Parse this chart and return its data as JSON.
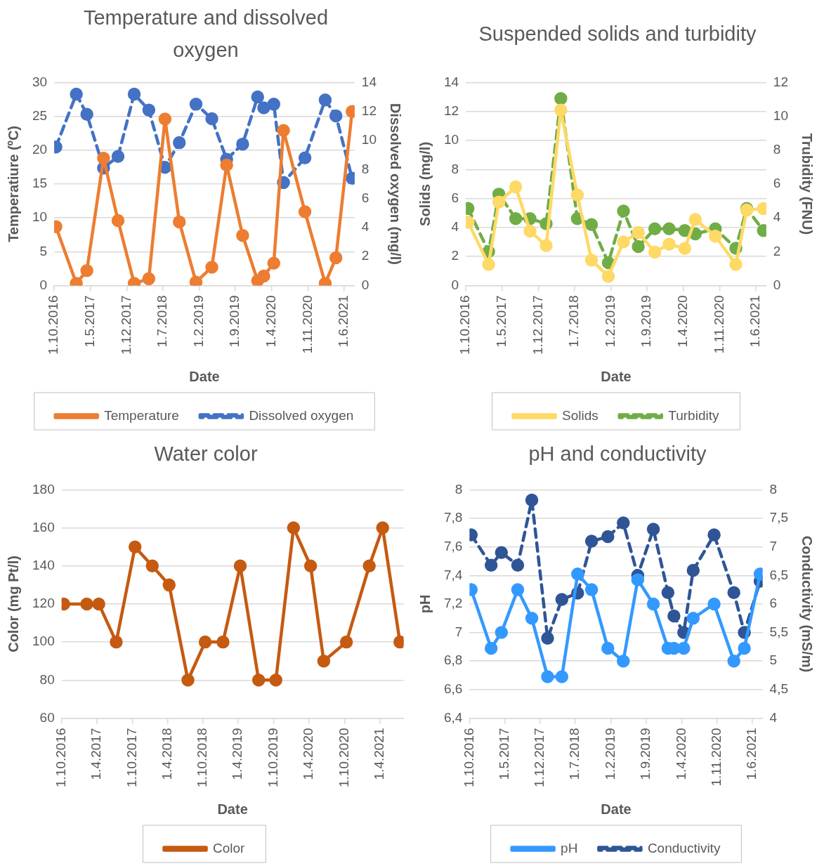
{
  "chart_data": [
    {
      "type": "line",
      "title": "Temperature and dissolved oxygen",
      "xlabel": "Date",
      "ylabel": "Temperatiure (ºC)",
      "y2label": "Dissolved oxygen (mg/l)",
      "x": [
        "2016-10-11",
        "2017-02-08",
        "2017-04-11",
        "2017-07-18",
        "2017-10-11",
        "2018-01-14",
        "2018-04-10",
        "2018-07-14",
        "2018-10-06",
        "2019-01-12",
        "2019-04-15",
        "2019-07-11",
        "2019-10-13",
        "2020-01-09",
        "2020-02-14",
        "2020-04-13",
        "2020-06-09",
        "2020-10-13",
        "2021-02-09",
        "2021-04-13",
        "2021-07-17"
      ],
      "series": [
        {
          "name": "Temperature",
          "color": "#ed7d31",
          "values": [
            8.7,
            0.3,
            2.2,
            18.8,
            9.6,
            0.3,
            1.0,
            24.6,
            9.4,
            0.5,
            2.7,
            17.8,
            7.4,
            0.7,
            1.4,
            3.3,
            22.9,
            10.9,
            0.3,
            4.1,
            25.7
          ]
        },
        {
          "name": "Dissolved oxygen",
          "color": "#4472c4",
          "axis": "y2",
          "line_style": "dashed",
          "values": [
            9.55,
            13.2,
            11.8,
            8.1,
            8.9,
            13.2,
            12.1,
            8.15,
            9.85,
            12.5,
            11.5,
            8.7,
            9.75,
            13.0,
            12.25,
            12.5,
            7.1,
            8.8,
            12.8,
            11.7,
            7.4
          ]
        }
      ],
      "xlim": [
        "2016-10-01",
        "2021-08-01"
      ],
      "xticks": [
        {
          "value": "2016-10-01",
          "label": "1.10.2016"
        },
        {
          "value": "2017-05-01",
          "label": "1.5.2017"
        },
        {
          "value": "2017-12-01",
          "label": "1.12.2017"
        },
        {
          "value": "2018-07-01",
          "label": "1.7.2018"
        },
        {
          "value": "2019-02-01",
          "label": "1.2.2019"
        },
        {
          "value": "2019-09-01",
          "label": "1.9.2019"
        },
        {
          "value": "2020-04-01",
          "label": "1.4.2020"
        },
        {
          "value": "2020-11-01",
          "label": "1.11.2020"
        },
        {
          "value": "2021-06-01",
          "label": "1.6.2021"
        }
      ],
      "ylim": [
        0,
        30
      ],
      "yticks": [
        0,
        5,
        10,
        15,
        20,
        25,
        30
      ],
      "y2lim": [
        0,
        14
      ],
      "y2ticks": [
        0,
        2,
        4,
        6,
        8,
        10,
        12,
        14
      ],
      "grid": "y",
      "legend": "bottom",
      "marker": "circle"
    },
    {
      "type": "line",
      "title": "Suspended solids and turbidity",
      "xlabel": "Date",
      "ylabel": "Solids (mg/l)",
      "y2label": "Trubidity (FNU)",
      "x": [
        "2016-10-14",
        "2017-02-12",
        "2017-04-13",
        "2017-07-21",
        "2017-10-13",
        "2018-01-16",
        "2018-04-12",
        "2018-07-18",
        "2018-10-09",
        "2019-01-16",
        "2019-04-15",
        "2019-07-11",
        "2019-10-16",
        "2020-01-08",
        "2020-04-09",
        "2020-06-10",
        "2020-10-06",
        "2021-02-03",
        "2021-04-08",
        "2021-07-15"
      ],
      "series": [
        {
          "name": "Solids",
          "color": "#ffd966",
          "values": [
            4.37,
            1.45,
            5.75,
            6.8,
            3.75,
            2.75,
            12.1,
            6.25,
            1.75,
            0.63,
            3.0,
            3.65,
            2.3,
            2.85,
            2.55,
            4.55,
            3.4,
            1.45,
            5.2,
            5.3
          ]
        },
        {
          "name": "Turbidity",
          "color": "#70ad47",
          "axis": "y2",
          "line_style": "dashed",
          "values": [
            4.55,
            2.0,
            5.4,
            3.95,
            3.95,
            3.65,
            11.05,
            3.95,
            3.6,
            1.35,
            4.4,
            2.3,
            3.35,
            3.35,
            3.25,
            3.05,
            3.35,
            2.2,
            4.55,
            3.25
          ]
        }
      ],
      "xlim": [
        "2016-10-01",
        "2021-08-01"
      ],
      "xticks": [
        {
          "value": "2016-10-01",
          "label": "1.10.2016"
        },
        {
          "value": "2017-05-01",
          "label": "1.5.2017"
        },
        {
          "value": "2017-12-01",
          "label": "1.12.2017"
        },
        {
          "value": "2018-07-01",
          "label": "1.7.2018"
        },
        {
          "value": "2019-02-01",
          "label": "1.2.2019"
        },
        {
          "value": "2019-09-01",
          "label": "1.9.2019"
        },
        {
          "value": "2020-04-01",
          "label": "1.4.2020"
        },
        {
          "value": "2020-11-01",
          "label": "1.11.2020"
        },
        {
          "value": "2021-06-01",
          "label": "1.6.2021"
        }
      ],
      "ylim": [
        0,
        14
      ],
      "yticks": [
        0,
        2,
        4,
        6,
        8,
        10,
        12,
        14
      ],
      "y2lim": [
        0,
        12
      ],
      "y2ticks": [
        0,
        2,
        4,
        6,
        8,
        10,
        12
      ],
      "grid": "y",
      "legend": "bottom",
      "marker": "circle"
    },
    {
      "type": "line",
      "title": "Water color",
      "xlabel": "Date",
      "ylabel": "Color (mg Pt/l)",
      "x": [
        "2016-10-12",
        "2017-02-08",
        "2017-04-11",
        "2017-07-10",
        "2017-10-15",
        "2018-01-12",
        "2018-04-09",
        "2018-07-15",
        "2018-10-12",
        "2019-01-12",
        "2019-04-11",
        "2019-07-15",
        "2019-10-12",
        "2020-01-11",
        "2020-04-08",
        "2020-06-15",
        "2020-10-10",
        "2021-02-05",
        "2021-04-15",
        "2021-07-13"
      ],
      "series": [
        {
          "name": "Color",
          "color": "#c55a11",
          "values": [
            120,
            120,
            120,
            100,
            150,
            140,
            130,
            80,
            100,
            100,
            140,
            80,
            80,
            160,
            140,
            90,
            100,
            140,
            160,
            100
          ]
        }
      ],
      "xlim": [
        "2016-10-01",
        "2021-08-01"
      ],
      "xticks": [
        {
          "value": "2016-10-01",
          "label": "1.10.2016"
        },
        {
          "value": "2017-04-01",
          "label": "1.4.2017"
        },
        {
          "value": "2017-10-01",
          "label": "1.10.2017"
        },
        {
          "value": "2018-04-01",
          "label": "1.4.2018"
        },
        {
          "value": "2018-10-01",
          "label": "1.10.2018"
        },
        {
          "value": "2019-04-01",
          "label": "1.4.2019"
        },
        {
          "value": "2019-10-01",
          "label": "1.10.2019"
        },
        {
          "value": "2020-04-01",
          "label": "1.4.2020"
        },
        {
          "value": "2020-10-01",
          "label": "1.10.2020"
        },
        {
          "value": "2021-04-01",
          "label": "1.4.2021"
        }
      ],
      "ylim": [
        60,
        180
      ],
      "yticks": [
        60,
        80,
        100,
        120,
        140,
        160,
        180
      ],
      "grid": "y",
      "legend": "bottom",
      "marker": "circle"
    },
    {
      "type": "line",
      "title": "pH and conductivity",
      "xlabel": "Date",
      "ylabel": "pH",
      "y2label": "Conductivity (mS/m)",
      "x": [
        "2016-10-11",
        "2017-02-08",
        "2017-04-11",
        "2017-07-18",
        "2017-10-11",
        "2018-01-14",
        "2018-04-10",
        "2018-07-14",
        "2018-10-06",
        "2019-01-12",
        "2019-04-15",
        "2019-07-11",
        "2019-10-13",
        "2020-01-09",
        "2020-02-14",
        "2020-04-13",
        "2020-06-09",
        "2020-10-13",
        "2021-02-09",
        "2021-04-13",
        "2021-07-17"
      ],
      "series": [
        {
          "name": "pH",
          "color": "#3399ff",
          "values": [
            7.3,
            6.89,
            7.0,
            7.3,
            7.1,
            6.69,
            6.69,
            7.41,
            7.3,
            6.89,
            6.8,
            7.37,
            7.2,
            6.89,
            6.89,
            6.89,
            7.1,
            7.2,
            6.8,
            6.89,
            7.41
          ]
        },
        {
          "name": "Conductivity",
          "color": "#2f5597",
          "axis": "y2",
          "line_style": "dashed",
          "values": [
            7.21,
            6.68,
            6.9,
            6.68,
            7.82,
            5.4,
            6.08,
            6.19,
            7.1,
            7.18,
            7.42,
            6.5,
            7.31,
            6.2,
            5.79,
            5.5,
            6.59,
            7.21,
            6.2,
            5.5,
            6.4
          ]
        }
      ],
      "xlim": [
        "2016-10-01",
        "2021-08-01"
      ],
      "xticks": [
        {
          "value": "2016-10-01",
          "label": "1.10.2016"
        },
        {
          "value": "2017-05-01",
          "label": "1.5.2017"
        },
        {
          "value": "2017-12-01",
          "label": "1.12.2017"
        },
        {
          "value": "2018-07-01",
          "label": "1.7.2018"
        },
        {
          "value": "2019-02-01",
          "label": "1.2.2019"
        },
        {
          "value": "2019-09-01",
          "label": "1.9.2019"
        },
        {
          "value": "2020-04-01",
          "label": "1.4.2020"
        },
        {
          "value": "2020-11-01",
          "label": "1.11.2020"
        },
        {
          "value": "2021-06-01",
          "label": "1.6.2021"
        }
      ],
      "ylim": [
        6.4,
        8
      ],
      "yticks": [
        {
          "value": 6.4,
          "label": "6,4"
        },
        {
          "value": 6.6,
          "label": "6,6"
        },
        {
          "value": 6.8,
          "label": "6,8"
        },
        7,
        {
          "value": 7.2,
          "label": "7,2"
        },
        {
          "value": 7.4,
          "label": "7,4"
        },
        {
          "value": 7.6,
          "label": "7,6"
        },
        {
          "value": 7.8,
          "label": "7,8"
        },
        8
      ],
      "y2lim": [
        4,
        8
      ],
      "y2ticks": [
        4,
        {
          "value": 4.5,
          "label": "4,5"
        },
        5,
        {
          "value": 5.5,
          "label": "5,5"
        },
        6,
        {
          "value": 6.5,
          "label": "6,5"
        },
        7,
        {
          "value": 7.5,
          "label": "7,5"
        },
        8
      ],
      "grid": "y",
      "legend": "bottom",
      "marker": "circle"
    }
  ]
}
